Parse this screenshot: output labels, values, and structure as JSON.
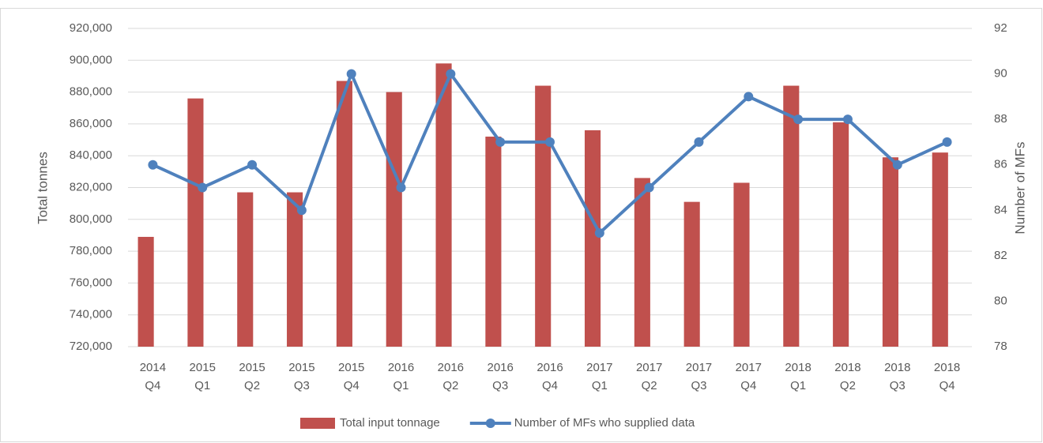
{
  "chart_data": {
    "type": "bar-line",
    "categories": [
      [
        "2014",
        "Q4"
      ],
      [
        "2015",
        "Q1"
      ],
      [
        "2015",
        "Q2"
      ],
      [
        "2015",
        "Q3"
      ],
      [
        "2015",
        "Q4"
      ],
      [
        "2016",
        "Q1"
      ],
      [
        "2016",
        "Q2"
      ],
      [
        "2016",
        "Q3"
      ],
      [
        "2016",
        "Q4"
      ],
      [
        "2017",
        "Q1"
      ],
      [
        "2017",
        "Q2"
      ],
      [
        "2017",
        "Q3"
      ],
      [
        "2017",
        "Q4"
      ],
      [
        "2018",
        "Q1"
      ],
      [
        "2018",
        "Q2"
      ],
      [
        "2018",
        "Q3"
      ],
      [
        "2018",
        "Q4"
      ]
    ],
    "series": [
      {
        "name": "Total input tonnage",
        "type": "bar",
        "color": "#c0504d",
        "axis": "y",
        "values": [
          789000,
          876000,
          817000,
          817000,
          887000,
          880000,
          898000,
          852000,
          884000,
          856000,
          826000,
          811000,
          823000,
          884000,
          861000,
          839000,
          842000
        ]
      },
      {
        "name": "Number of MFs who supplied data",
        "type": "line",
        "color": "#4f81bd",
        "axis": "y2",
        "values": [
          86,
          85,
          86,
          84,
          90,
          85,
          90,
          87,
          87,
          83,
          85,
          87,
          89,
          88,
          88,
          86,
          87
        ]
      }
    ],
    "ylabel": "Total tonnes",
    "y2label": "Number of MFs",
    "ylim": [
      720000,
      920000
    ],
    "yticks": [
      {
        "value": 720000,
        "label": "720,000"
      },
      {
        "value": 740000,
        "label": "740,000"
      },
      {
        "value": 760000,
        "label": "760,000"
      },
      {
        "value": 780000,
        "label": "780,000"
      },
      {
        "value": 800000,
        "label": "800,000"
      },
      {
        "value": 820000,
        "label": "820,000"
      },
      {
        "value": 840000,
        "label": "840,000"
      },
      {
        "value": 860000,
        "label": "860,000"
      },
      {
        "value": 880000,
        "label": "880,000"
      },
      {
        "value": 900000,
        "label": "900,000"
      },
      {
        "value": 920000,
        "label": "920,000"
      }
    ],
    "y2lim": [
      78,
      92
    ],
    "y2ticks": [
      78,
      80,
      82,
      84,
      86,
      88,
      90,
      92
    ],
    "grid": true,
    "legend": "bottom"
  }
}
